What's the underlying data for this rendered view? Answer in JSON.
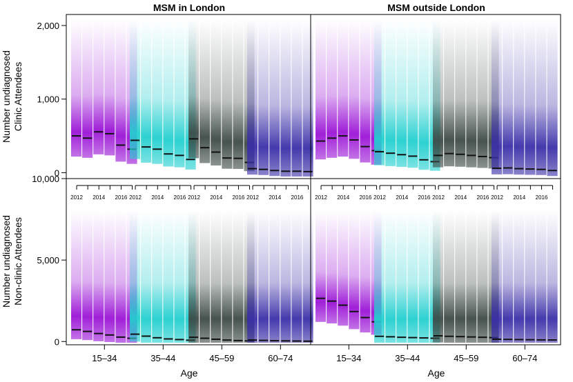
{
  "chart_data": {
    "type": "density-strip",
    "panel_titles": [
      "MSM in London",
      "MSM outside London"
    ],
    "x_label": "Age",
    "age_groups": [
      "15–34",
      "35–44",
      "45–59",
      "60–74"
    ],
    "years": [
      2012,
      2013,
      2014,
      2015,
      2016,
      2017
    ],
    "year_tick_labels": [
      "2012",
      "2014",
      "2016"
    ],
    "colors": {
      "15–34": "#9b14d6",
      "35–44": "#22cfcf",
      "45–59": "#3d4a45",
      "60–74": "#3a2fa8"
    },
    "rows": [
      {
        "y_label_line1": "Number undiagnosed",
        "y_label_line2": "Clinic Attendees",
        "ylim": [
          -80,
          2150
        ],
        "yticks": [
          0,
          1000,
          2000
        ],
        "ytick_labels": [
          "0",
          "1,000",
          "2,000"
        ],
        "panels": [
          {
            "medians": {
              "15–34": [
                500,
                470,
                555,
                530,
                375,
                320
              ],
              "35–44": [
                440,
                350,
                320,
                255,
                235,
                180
              ],
              "45–59": [
                460,
                340,
                280,
                200,
                195,
                140
              ],
              "60–74": [
                55,
                45,
                30,
                20,
                20,
                15
              ]
            }
          },
          {
            "medians": {
              "15–34": [
                430,
                470,
                500,
                445,
                355,
                300
              ],
              "35–44": [
                285,
                265,
                245,
                225,
                175,
                150
              ],
              "45–59": [
                235,
                260,
                250,
                235,
                220,
                205
              ],
              "60–74": [
                60,
                65,
                55,
                50,
                45,
                30
              ]
            }
          }
        ]
      },
      {
        "y_label_line1": "Number undiagnosed",
        "y_label_line2": "Non-clinic Attendees",
        "ylim": [
          -200,
          10000
        ],
        "yticks": [
          0,
          5000,
          10000
        ],
        "ytick_labels": [
          "0",
          "5,000",
          "10,000"
        ],
        "panels": [
          {
            "medians": {
              "15–34": [
                720,
                620,
                490,
                400,
                270,
                200
              ],
              "35–44": [
                450,
                330,
                230,
                160,
                120,
                80
              ],
              "45–59": [
                260,
                200,
                140,
                90,
                60,
                40
              ],
              "60–74": [
                90,
                70,
                50,
                40,
                30,
                20
              ]
            }
          },
          {
            "medians": {
              "15–34": [
                2650,
                2480,
                2230,
                1840,
                1470,
                1210
              ],
              "35–44": [
                320,
                290,
                260,
                240,
                220,
                200
              ],
              "45–59": [
                350,
                320,
                300,
                280,
                260,
                240
              ],
              "60–74": [
                140,
                130,
                120,
                110,
                100,
                95
              ]
            }
          }
        ]
      }
    ]
  }
}
